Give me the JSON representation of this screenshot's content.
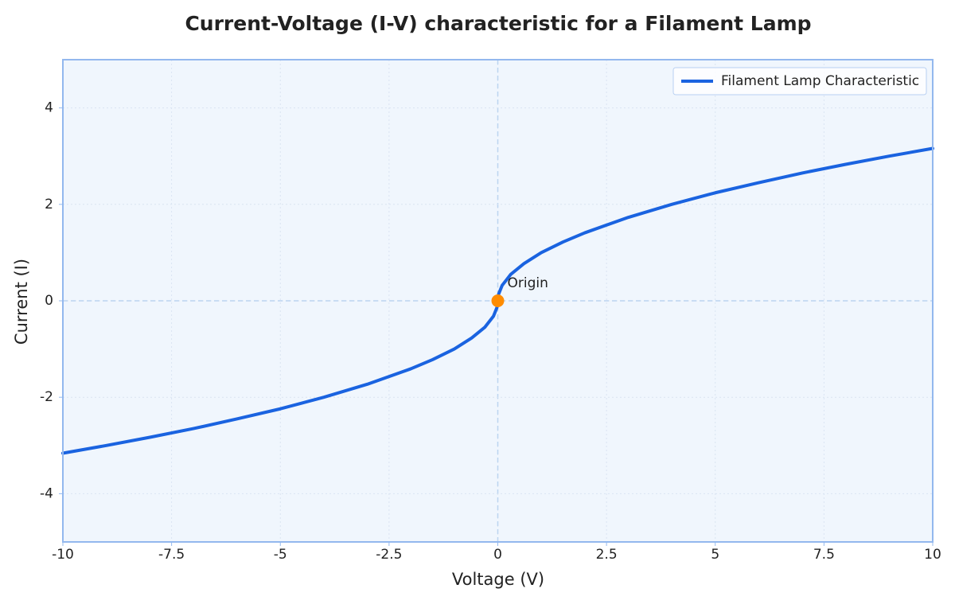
{
  "chart_data": {
    "type": "line",
    "title": "Current-Voltage (I-V) characteristic for a Filament Lamp",
    "xlabel": "Voltage (V)",
    "ylabel": "Current (I)",
    "x": [
      -10,
      -9,
      -8,
      -7,
      -6,
      -5,
      -4,
      -3,
      -2,
      -1.5,
      -1,
      -0.6,
      -0.3,
      -0.1,
      -0.02,
      0,
      0.02,
      0.1,
      0.3,
      0.6,
      1,
      1.5,
      2,
      3,
      4,
      5,
      6,
      7,
      8,
      9,
      10
    ],
    "series": [
      {
        "name": "Filament Lamp Characteristic",
        "color": "#1a63e0",
        "values": [
          -3.16,
          -3,
          -2.83,
          -2.65,
          -2.45,
          -2.24,
          -2,
          -1.73,
          -1.41,
          -1.22,
          -1,
          -0.77,
          -0.55,
          -0.32,
          -0.14,
          0,
          0.14,
          0.32,
          0.55,
          0.77,
          1,
          1.22,
          1.41,
          1.73,
          2,
          2.24,
          2.45,
          2.65,
          2.83,
          3,
          3.16
        ]
      }
    ],
    "marker": {
      "x": 0,
      "y": 0,
      "color": "#ff8c00"
    },
    "annotation": {
      "text": "Origin",
      "x": 0,
      "y": 0
    },
    "xlim": [
      -10,
      10
    ],
    "ylim": [
      -5,
      5
    ],
    "xticks": [
      -10,
      -7.5,
      -5,
      -2.5,
      0,
      2.5,
      5,
      7.5,
      10
    ],
    "yticks": [
      -4,
      -2,
      0,
      2,
      4
    ],
    "grid": true,
    "legend": "upper right"
  }
}
